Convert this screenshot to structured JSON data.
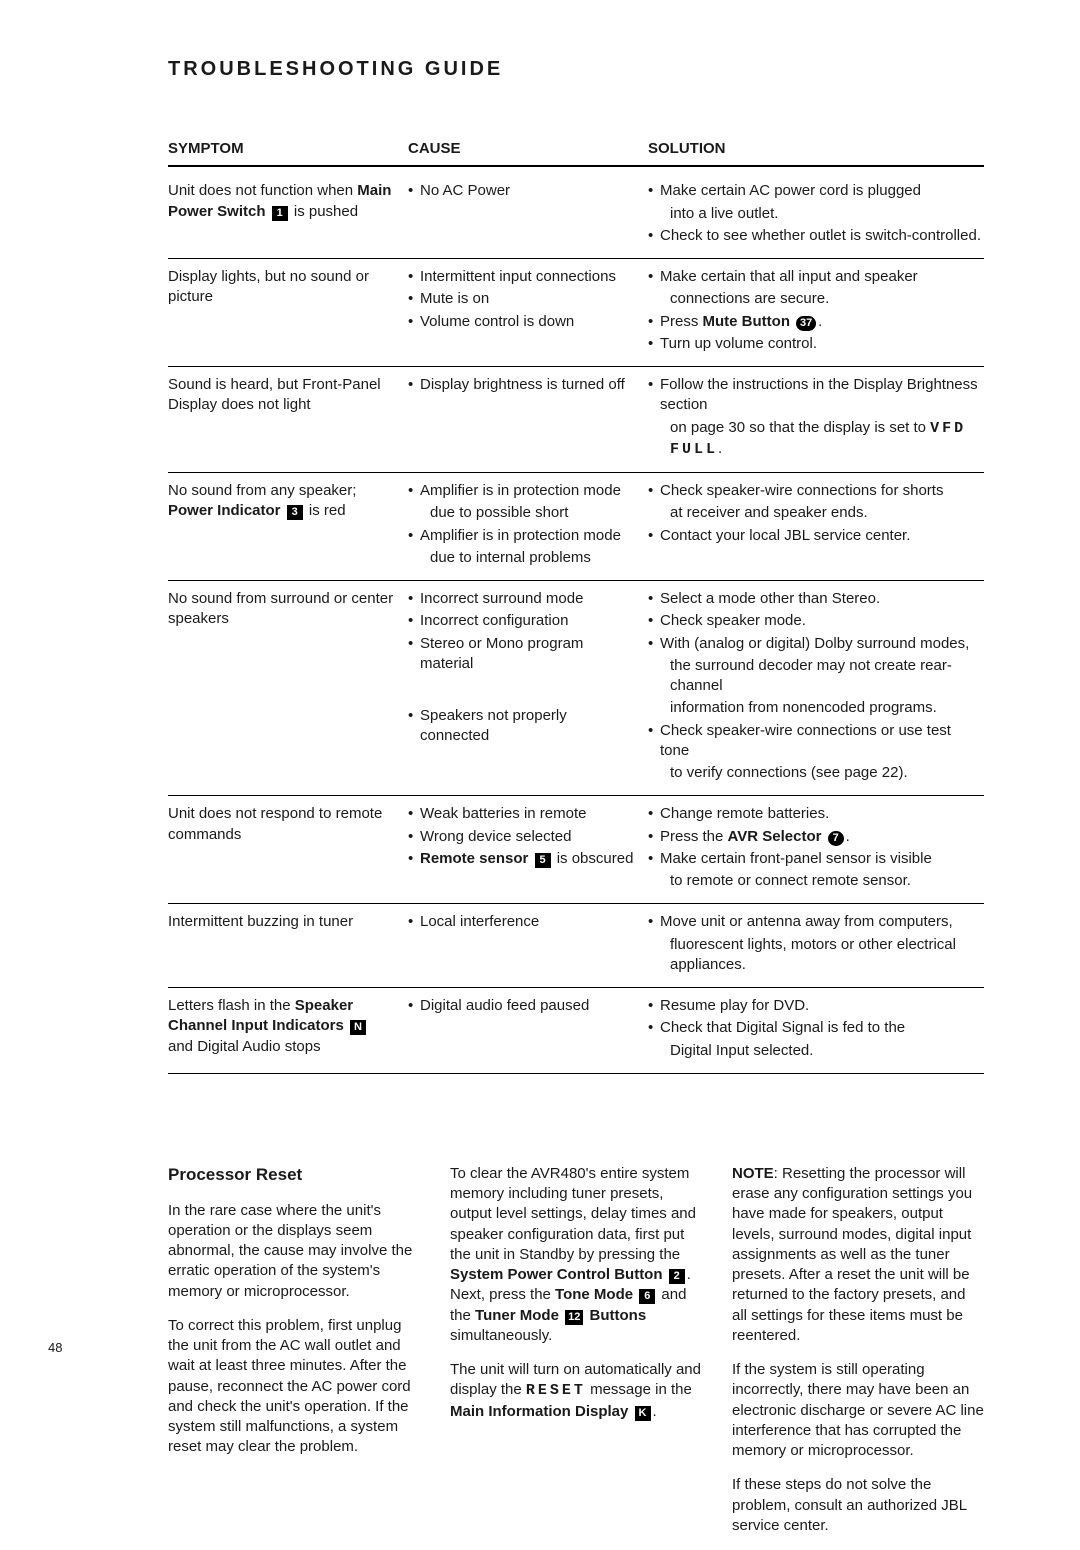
{
  "page_title": "TROUBLESHOOTING GUIDE",
  "page_number": "48",
  "headers": {
    "symptom": "SYMPTOM",
    "cause": "CAUSE",
    "solution": "SOLUTION"
  },
  "rows": [
    {
      "symptom_html": "Unit does not function when <span class='bold'>Main Power Switch</span> <span class='chip' data-name='ref-icon-1' data-interactable='false'>1</span> is pushed",
      "causes": [
        "No AC Power"
      ],
      "solutions": [
        "Make certain AC power cord is plugged",
        {
          "indent": true,
          "text": "into a live outlet."
        },
        "Check to see whether outlet is switch-controlled."
      ]
    },
    {
      "symptom_html": "Display lights, but no sound or picture",
      "causes": [
        "Intermittent input connections",
        "Mute is on",
        "Volume control is down"
      ],
      "solutions": [
        "Make certain that all input and speaker",
        {
          "indent": true,
          "text": "connections are secure."
        },
        {
          "html": "Press <span class='bold'>Mute Button</span> <span class='chip chip-oval' data-name='ref-icon-37' data-interactable='false'>37</span>."
        },
        "Turn up volume control."
      ]
    },
    {
      "symptom_html": "Sound is heard, but Front-Panel Display does not light",
      "causes": [
        "Display brightness is turned off"
      ],
      "solutions": [
        "Follow the instructions in the Display Brightness section",
        {
          "indent": true,
          "html": "on page 30 so that the display is set to <span class='vfd'>VFD FULL</span>."
        }
      ]
    },
    {
      "symptom_html": "No sound from any speaker; <span class='bold'>Power Indicator</span> <span class='chip' data-name='ref-icon-3' data-interactable='false'>3</span> is red",
      "causes": [
        "Amplifier is in protection mode",
        {
          "indent": true,
          "text": "due to possible short"
        },
        "Amplifier is in protection mode",
        {
          "indent": true,
          "text": "due to internal problems"
        }
      ],
      "solutions": [
        "Check speaker-wire connections for shorts",
        {
          "indent": true,
          "text": "at receiver and speaker ends."
        },
        "Contact your local JBL service center."
      ]
    },
    {
      "symptom_html": "No sound from surround or center speakers",
      "causes": [
        "Incorrect surround mode",
        "Incorrect configuration",
        "Stereo or Mono program material",
        {
          "spacer": true
        },
        "Speakers not properly connected"
      ],
      "solutions": [
        "Select a mode other than Stereo.",
        "Check speaker mode.",
        "With (analog or digital) Dolby surround modes,",
        {
          "indent": true,
          "text": "the surround decoder may not create rear-channel"
        },
        {
          "indent": true,
          "text": "information from nonencoded programs."
        },
        "Check speaker-wire connections or use test tone",
        {
          "indent": true,
          "text": "to verify connections (see page 22)."
        }
      ]
    },
    {
      "symptom_html": "Unit does not respond to remote commands",
      "causes": [
        "Weak batteries in remote",
        "Wrong device selected",
        {
          "html": "<span class='bold'>Remote sensor</span> <span class='chip' data-name='ref-icon-5' data-interactable='false'>5</span> is obscured"
        }
      ],
      "solutions": [
        "Change remote batteries.",
        {
          "html": "Press the <span class='bold'>AVR Selector</span> <span class='chip chip-round' data-name='ref-icon-7' data-interactable='false'>7</span>."
        },
        "Make certain front-panel sensor is visible",
        {
          "indent": true,
          "text": "to remote or connect remote sensor."
        }
      ]
    },
    {
      "symptom_html": "Intermittent buzzing in tuner",
      "causes": [
        "Local interference"
      ],
      "solutions": [
        "Move unit or antenna away from computers,",
        {
          "indent": true,
          "text": "fluorescent lights, motors or other electrical appliances."
        }
      ]
    },
    {
      "symptom_html": "Letters flash in the <span class='bold'>Speaker Channel Input Indicators</span> <span class='chip' data-name='ref-icon-n' data-interactable='false'>N</span> and Digital Audio stops",
      "causes": [
        "Digital audio feed paused"
      ],
      "solutions": [
        "Resume play for DVD.",
        "Check that Digital Signal is fed to the",
        {
          "indent": true,
          "text": "Digital Input selected."
        }
      ]
    }
  ],
  "lower": {
    "heading": "Processor Reset",
    "col1_p1": "In the rare case where the unit's operation or the displays seem abnormal, the cause may involve the erratic operation of the system's memory or microprocessor.",
    "col1_p2": "To correct this problem, first unplug the unit from the AC wall outlet and wait at least three minutes. After the pause, reconnect the AC power cord and check the unit's operation. If the system still malfunctions, a system reset may clear the problem.",
    "col2_p1_html": "To clear the AVR480's entire system memory including tuner presets, output level settings, delay times and speaker configuration data, first put the unit in Standby by pressing the <span class='bold'>System Power Control Button</span> <span class='chip' data-name='ref-icon-2' data-interactable='false'>2</span>. Next, press the <span class='bold'>Tone Mode</span> <span class='chip' data-name='ref-icon-6' data-interactable='false'>6</span> and the <span class='bold'>Tuner Mode</span> <span class='chip' data-name='ref-icon-12' data-interactable='false'>12</span> <span class='bold'>Buttons</span> simultaneously.",
    "col2_p2_html": "The unit will turn on automatically and display the <span class='vfd'>RESET</span> message in the <span class='bold'>Main Information Display</span> <span class='chip' data-name='ref-icon-k' data-interactable='false'>K</span>.",
    "col3_p1_html": "<span class='bold'>NOTE</span>: Resetting the processor will erase any configuration settings you have made for speakers, output levels, surround modes, digital input assignments as well as the tuner presets. After a reset the unit will be returned to the factory presets, and all settings for these items must be reentered.",
    "col3_p2": "If the system is still operating incorrectly, there may have been an electronic discharge or severe AC line interference that has corrupted the memory or microprocessor.",
    "col3_p3": "If these steps do not solve the problem, consult an authorized JBL service center."
  }
}
